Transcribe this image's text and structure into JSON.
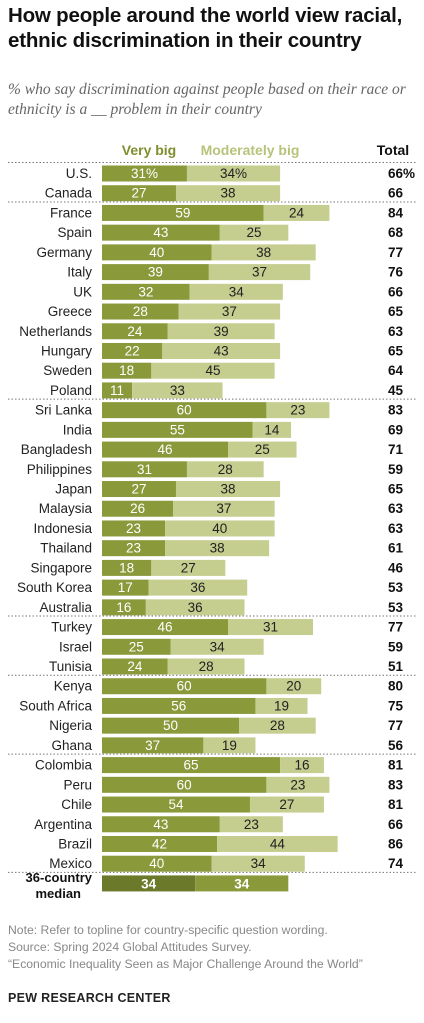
{
  "header": {
    "title": "How people around the world view racial, ethnic discrimination in their country",
    "subtitle": "% who say discrimination against people based on their race or ethnicity is a __ problem in their country"
  },
  "colors": {
    "very_big": "#8a9a3b",
    "moderately_big": "#c5cd8f",
    "median_very_big": "#6b7a2a",
    "median_moderately_big": "#8a9a3b",
    "very_big_legend": "#7e8f2e",
    "moderately_big_legend": "#b8c27a"
  },
  "chart_data": {
    "type": "bar",
    "orientation": "horizontal",
    "stacked": true,
    "legend_position": "top",
    "categories": [
      "U.S.",
      "Canada",
      "France",
      "Spain",
      "Germany",
      "Italy",
      "UK",
      "Greece",
      "Netherlands",
      "Hungary",
      "Sweden",
      "Poland",
      "Sri Lanka",
      "India",
      "Bangladesh",
      "Philippines",
      "Japan",
      "Malaysia",
      "Indonesia",
      "Thailand",
      "Singapore",
      "South Korea",
      "Australia",
      "Turkey",
      "Israel",
      "Tunisia",
      "Kenya",
      "South Africa",
      "Nigeria",
      "Ghana",
      "Colombia",
      "Peru",
      "Chile",
      "Argentina",
      "Brazil",
      "Mexico"
    ],
    "groups": [
      2,
      10,
      11,
      3,
      4,
      6
    ],
    "series": [
      {
        "name": "Very big",
        "values": [
          31,
          27,
          59,
          43,
          40,
          39,
          32,
          28,
          24,
          22,
          18,
          11,
          60,
          55,
          46,
          31,
          27,
          26,
          23,
          23,
          18,
          17,
          16,
          46,
          25,
          24,
          60,
          56,
          50,
          37,
          65,
          60,
          54,
          43,
          42,
          40
        ]
      },
      {
        "name": "Moderately big",
        "values": [
          34,
          38,
          24,
          25,
          38,
          37,
          34,
          37,
          39,
          43,
          45,
          33,
          23,
          14,
          25,
          28,
          38,
          37,
          40,
          38,
          27,
          36,
          36,
          31,
          34,
          28,
          20,
          19,
          28,
          19,
          16,
          23,
          27,
          23,
          44,
          34
        ]
      }
    ],
    "totals": [
      66,
      66,
      84,
      68,
      77,
      76,
      66,
      65,
      63,
      65,
      64,
      45,
      83,
      69,
      71,
      59,
      65,
      63,
      63,
      61,
      46,
      53,
      53,
      77,
      59,
      51,
      80,
      75,
      77,
      56,
      81,
      83,
      81,
      66,
      86,
      74
    ],
    "total_label": "Total",
    "percent_suffix": "%",
    "median": {
      "label": "36-country median",
      "label_line1": "36-country",
      "label_line2": "median",
      "very_big": 34,
      "moderately_big": 34
    }
  },
  "footer": {
    "note": "Note: Refer to topline for country-specific question wording.",
    "source": "Source: Spring 2024 Global Attitudes Survey.",
    "report": "“Economic Inequality Seen as Major Challenge Around the World”",
    "brand": "PEW RESEARCH CENTER"
  }
}
